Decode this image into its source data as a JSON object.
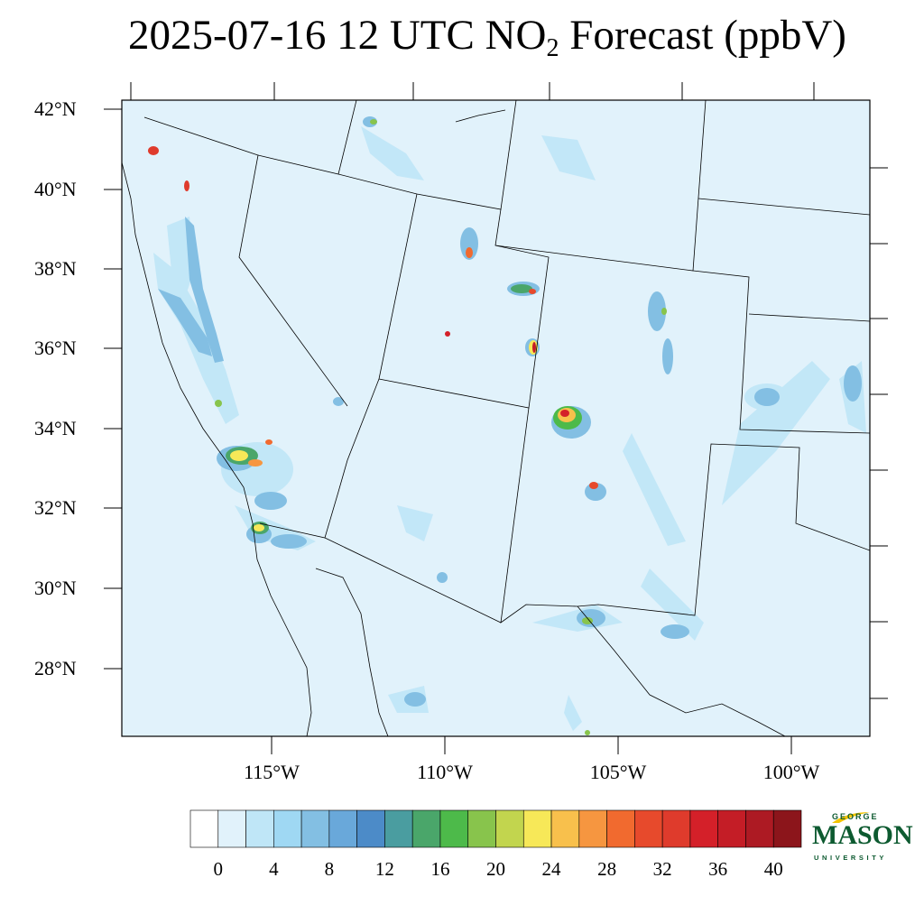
{
  "title": {
    "prefix": "2025-07-16 12 UTC NO",
    "subscript": "2",
    "suffix": " Forecast (ppbV)"
  },
  "axes": {
    "lat_labels": [
      "42°N",
      "40°N",
      "38°N",
      "36°N",
      "34°N",
      "32°N",
      "30°N",
      "28°N"
    ],
    "lon_labels": [
      "115°W",
      "110°W",
      "105°W",
      "100°W"
    ]
  },
  "colorbar": {
    "tick_labels": [
      "0",
      "4",
      "8",
      "12",
      "16",
      "20",
      "24",
      "28",
      "32",
      "36",
      "40"
    ],
    "levels": [
      0,
      2,
      4,
      6,
      8,
      10,
      12,
      14,
      16,
      18,
      20,
      22,
      24,
      26,
      28,
      30,
      32,
      34,
      36,
      38,
      40,
      42
    ],
    "colors": [
      "#ffffff",
      "#e1f2fb",
      "#bfe6f7",
      "#9fd8f3",
      "#83bfe3",
      "#69a8da",
      "#4c8bc8",
      "#4a9da0",
      "#4aa66a",
      "#4dba4a",
      "#88c44c",
      "#c2d54e",
      "#f7e858",
      "#f8c04c",
      "#f69640",
      "#f16a2f",
      "#e74a2c",
      "#df3b2c",
      "#d42029",
      "#c41d26",
      "#ad1a23",
      "#8c151b"
    ]
  },
  "map": {
    "background_color": "#e1f2fb",
    "boundary_color": "#000000"
  },
  "logo": {
    "line1": "GEORGE",
    "line2": "MASON",
    "line3": "UNIVERSITY",
    "brand_green": "#0d5a30",
    "brand_gold": "#f2c400"
  }
}
